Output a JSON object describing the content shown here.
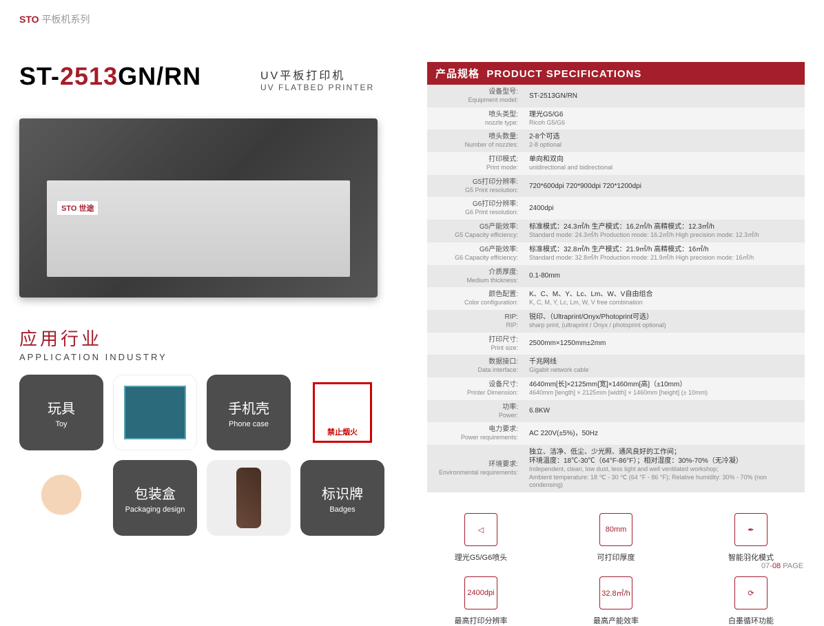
{
  "header": {
    "brand": "STO",
    "series": "平板机系列"
  },
  "title": {
    "prefix": "ST-",
    "model_num": "2513",
    "suffix": "GN/RN",
    "subtitle_cn": "UV平板打印机",
    "subtitle_en": "UV FLATBED PRINTER"
  },
  "printer_brand": "STO 世途",
  "application": {
    "title_cn": "应用行业",
    "title_en": "APPLICATION INDUSTRY"
  },
  "tiles": {
    "toy_cn": "玩具",
    "toy_en": "Toy",
    "phone_cn": "手机壳",
    "phone_en": "Phone case",
    "sign_label": "禁止烟火",
    "pack_cn": "包装盒",
    "pack_en": "Packaging design",
    "badge_cn": "标识牌",
    "badge_en": "Badges"
  },
  "spec_header_cn": "产品规格",
  "spec_header_en": "PRODUCT SPECIFICATIONS",
  "specs": [
    {
      "label_cn": "设备型号:",
      "label_en": "Equipment model:",
      "val_cn": "ST-2513GN/RN",
      "val_en": ""
    },
    {
      "label_cn": "喷头类型:",
      "label_en": "nozzle type:",
      "val_cn": "理光G5/G6",
      "val_en": "Ricoh G5/G6"
    },
    {
      "label_cn": "喷头数量:",
      "label_en": "Number of nozzles:",
      "val_cn": "2-8个可选",
      "val_en": "2-8 optional"
    },
    {
      "label_cn": "打印模式:",
      "label_en": "Print mode:",
      "val_cn": "单向和双向",
      "val_en": "unidirectional and bidirectional"
    },
    {
      "label_cn": "G5打印分辨率:",
      "label_en": "G5 Print resolution:",
      "val_cn": "720*600dpi    720*900dpi    720*1200dpi",
      "val_en": ""
    },
    {
      "label_cn": "G6打印分辨率:",
      "label_en": "G6 Print resolution:",
      "val_cn": "2400dpi",
      "val_en": ""
    },
    {
      "label_cn": "G5产能效率:",
      "label_en": "G5 Capacity efficiency:",
      "val_cn": "标准模式：24.3㎡/h   生产模式：16.2㎡/h   高精模式：12.3㎡/h",
      "val_en": "Standard mode: 24.3㎡/h   Production mode: 16.2㎡/h   High precision mode: 12.3㎡/h"
    },
    {
      "label_cn": "G6产能效率:",
      "label_en": "G6 Capacity efficiency:",
      "val_cn": "标准模式：32.8㎡/h   生产模式：21.9㎡/h   高精模式：16㎡/h",
      "val_en": "Standard mode: 32.8㎡/h   Production mode: 21.9㎡/h   High precision mode: 16㎡/h"
    },
    {
      "label_cn": "介质厚度:",
      "label_en": "Medium thickness:",
      "val_cn": "0.1-80mm",
      "val_en": ""
    },
    {
      "label_cn": "颜色配置:",
      "label_en": "Color configuration:",
      "val_cn": "K、C、M、Y、Lc、Lm、W、V自由组合",
      "val_en": "K, C, M, Y, Lc, Lm, W, V free combination"
    },
    {
      "label_cn": "RIP:",
      "label_en": "RIP:",
      "val_cn": "锐印、（Ultraprint/Onyx/Photoprint可选）",
      "val_en": "sharp print, (ultraprint / Onyx / photoprint optional)"
    },
    {
      "label_cn": "打印尺寸:",
      "label_en": "Print size:",
      "val_cn": "2500mm×1250mm±2mm",
      "val_en": ""
    },
    {
      "label_cn": "数据接口:",
      "label_en": "Data interface:",
      "val_cn": "千兆网线",
      "val_en": "Gigabit network cable"
    },
    {
      "label_cn": "设备尺寸:",
      "label_en": "Printer Dimension:",
      "val_cn": "4640mm[长]×2125mm[宽]×1460mm[高]（±10mm）",
      "val_en": "4640mm [length] × 2125mm [width] × 1460mm [height] (± 10mm)"
    },
    {
      "label_cn": "功率:",
      "label_en": "Power:",
      "val_cn": "6.8KW",
      "val_en": ""
    },
    {
      "label_cn": "电力要求:",
      "label_en": "Power requirements:",
      "val_cn": "AC 220V(±5%)，50Hz",
      "val_en": ""
    },
    {
      "label_cn": "环境要求:",
      "label_en": "Environmental requirements:",
      "val_cn": "独立、洁净、低尘、少光照、通风良好的工作间；\n环境温度：18℃-30℃（64°F-86°F）；相对湿度：30%-70%（无冷凝）",
      "val_en": "Independent, clean, low dust, less light and well ventilated workshop;\nAmbient temperature: 18 ℃ - 30 ℃ (64 °F - 86 °F); Relative humidity: 30% - 70% (non condensing)"
    }
  ],
  "features": [
    {
      "icon": "◁",
      "label": "理光G5/G6喷头"
    },
    {
      "icon": "80mm",
      "label": "可打印厚度"
    },
    {
      "icon": "✒",
      "label": "智能羽化模式"
    },
    {
      "icon": "2400dpi",
      "label": "最高打印分辨率"
    },
    {
      "icon": "32.8㎡/h",
      "label": "最高产能效率"
    },
    {
      "icon": "⟳",
      "label": "白墨循环功能"
    }
  ],
  "page": {
    "prefix": "07-",
    "num": "08",
    "suffix": " PAGE"
  }
}
